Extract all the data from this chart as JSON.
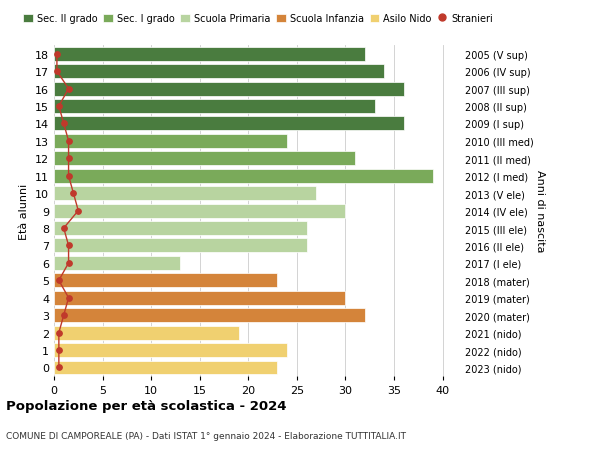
{
  "ages": [
    18,
    17,
    16,
    15,
    14,
    13,
    12,
    11,
    10,
    9,
    8,
    7,
    6,
    5,
    4,
    3,
    2,
    1,
    0
  ],
  "right_labels": [
    "2005 (V sup)",
    "2006 (IV sup)",
    "2007 (III sup)",
    "2008 (II sup)",
    "2009 (I sup)",
    "2010 (III med)",
    "2011 (II med)",
    "2012 (I med)",
    "2013 (V ele)",
    "2014 (IV ele)",
    "2015 (III ele)",
    "2016 (II ele)",
    "2017 (I ele)",
    "2018 (mater)",
    "2019 (mater)",
    "2020 (mater)",
    "2021 (nido)",
    "2022 (nido)",
    "2023 (nido)"
  ],
  "bar_values": [
    32,
    34,
    36,
    33,
    36,
    24,
    31,
    39,
    27,
    30,
    26,
    26,
    13,
    23,
    30,
    32,
    19,
    24,
    23
  ],
  "stranieri_values": [
    0.3,
    0.3,
    1.5,
    0.5,
    1.0,
    1.5,
    1.5,
    1.5,
    2.0,
    2.5,
    1.0,
    1.5,
    1.5,
    0.5,
    1.5,
    1.0,
    0.5,
    0.5,
    0.5
  ],
  "bar_colors": [
    "#4a7c3f",
    "#4a7c3f",
    "#4a7c3f",
    "#4a7c3f",
    "#4a7c3f",
    "#7aaa5a",
    "#7aaa5a",
    "#7aaa5a",
    "#b8d4a0",
    "#b8d4a0",
    "#b8d4a0",
    "#b8d4a0",
    "#b8d4a0",
    "#d4843a",
    "#d4843a",
    "#d4843a",
    "#f0d070",
    "#f0d070",
    "#f0d070"
  ],
  "legend_labels": [
    "Sec. II grado",
    "Sec. I grado",
    "Scuola Primaria",
    "Scuola Infanzia",
    "Asilo Nido",
    "Stranieri"
  ],
  "legend_colors": [
    "#4a7c3f",
    "#7aaa5a",
    "#b8d4a0",
    "#d4843a",
    "#f0d070",
    "#c0392b"
  ],
  "stranieri_color": "#c0392b",
  "ylabel_left": "Età alunni",
  "ylabel_right": "Anni di nascita",
  "title": "Popolazione per età scolastica - 2024",
  "subtitle": "COMUNE DI CAMPOREALE (PA) - Dati ISTAT 1° gennaio 2024 - Elaborazione TUTTITALIA.IT",
  "xlim": [
    0,
    42
  ],
  "bg_color": "#ffffff",
  "bar_height": 0.8,
  "grid_color": "#cccccc"
}
